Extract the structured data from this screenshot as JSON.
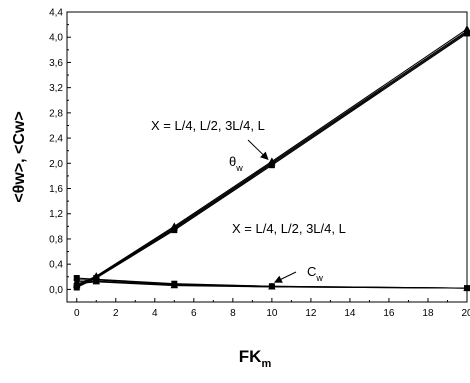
{
  "chart_data": {
    "type": "line",
    "title": "",
    "xlabel": {
      "main": "FK",
      "sub": "m"
    },
    "ylabel": "<θw>, <Cw>",
    "xlim": [
      -0.5,
      20
    ],
    "ylim": [
      -0.2,
      4.4
    ],
    "xticks": [
      0,
      2,
      4,
      6,
      8,
      10,
      12,
      14,
      16,
      18,
      20
    ],
    "yticks": [
      0.0,
      0.4,
      0.8,
      1.2,
      1.6,
      2.0,
      2.4,
      2.8,
      3.2,
      3.6,
      4.0,
      4.4
    ],
    "ytick_labels": [
      "0,0",
      "0,4",
      "0,8",
      "1,2",
      "1,6",
      "2,0",
      "2,4",
      "2,8",
      "3,2",
      "3,6",
      "4,0",
      "4,4"
    ],
    "x": [
      0,
      1,
      5,
      10,
      20
    ],
    "series": [
      {
        "group": "theta_w",
        "marker": "square",
        "values": [
          0.03,
          0.18,
          0.94,
          1.97,
          4.06
        ]
      },
      {
        "group": "theta_w",
        "marker": "circle",
        "values": [
          0.05,
          0.19,
          0.96,
          1.99,
          4.08
        ]
      },
      {
        "group": "theta_w",
        "marker": "triangle",
        "values": [
          0.06,
          0.2,
          0.98,
          2.01,
          4.1
        ]
      },
      {
        "group": "theta_w",
        "marker": "triangle",
        "values": [
          0.07,
          0.21,
          1.0,
          2.03,
          4.13
        ]
      },
      {
        "group": "C_w",
        "marker": "square",
        "values": [
          0.18,
          0.16,
          0.09,
          0.05,
          0.02
        ]
      },
      {
        "group": "C_w",
        "marker": "circle",
        "values": [
          0.15,
          0.15,
          0.08,
          0.05,
          0.02
        ]
      },
      {
        "group": "C_w",
        "marker": "triangle",
        "values": [
          0.12,
          0.13,
          0.07,
          0.04,
          0.02
        ]
      },
      {
        "group": "C_w",
        "marker": "triangle",
        "values": [
          0.09,
          0.12,
          0.06,
          0.04,
          0.02
        ]
      }
    ],
    "annotations": [
      {
        "text": "X = L/4, L/2, 3L/4, L",
        "arrow_to": {
          "x": 10,
          "y": 2.0
        }
      },
      {
        "text": "θ",
        "sub": "w"
      },
      {
        "text": "X = L/4, L/2, 3L/4, L"
      },
      {
        "text": "C",
        "sub": "w",
        "arrow_to": {
          "x": 10,
          "y": 0.05
        }
      }
    ],
    "grid": false,
    "legend": "none",
    "color": "#000000"
  }
}
